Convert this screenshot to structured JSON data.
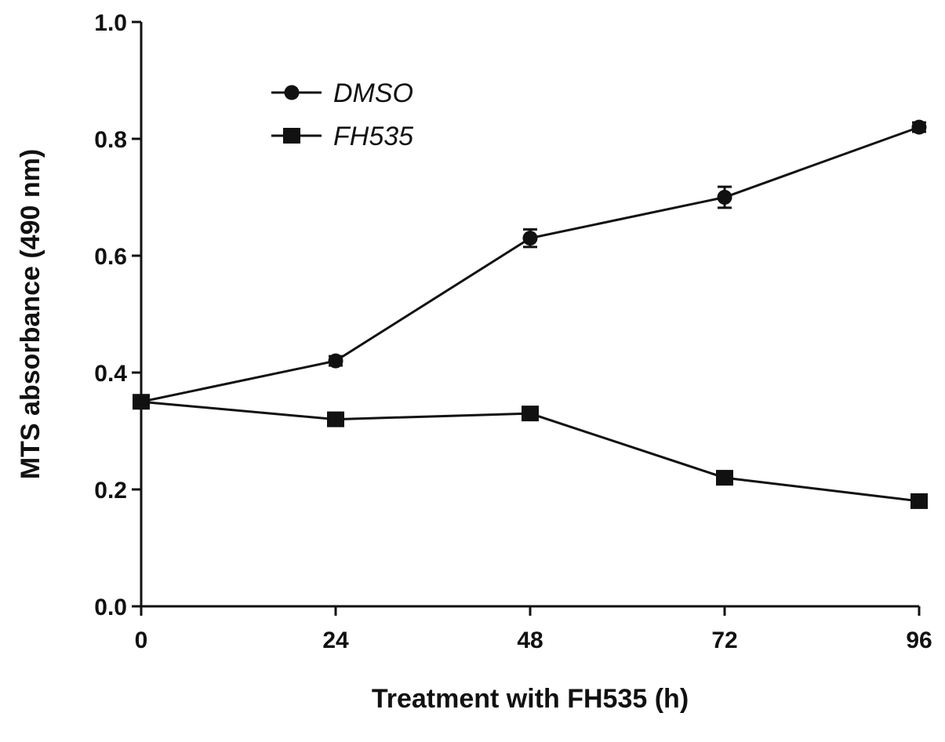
{
  "chart_data": {
    "type": "line",
    "title": "",
    "xlabel": "Treatment with FH535 (h)",
    "ylabel": "MTS absorbance (490 nm)",
    "x": [
      0,
      24,
      48,
      72,
      96
    ],
    "xlim": [
      0,
      96
    ],
    "ylim": [
      0.0,
      1.0
    ],
    "x_ticks": [
      "0",
      "24",
      "48",
      "72",
      "96"
    ],
    "y_ticks": [
      "0.0",
      "0.2",
      "0.4",
      "0.6",
      "0.8",
      "1.0"
    ],
    "grid": false,
    "legend_position": "top-left",
    "series": [
      {
        "name": "DMSO",
        "marker": "circle",
        "color": "#111111",
        "values": [
          0.35,
          0.42,
          0.63,
          0.7,
          0.82
        ],
        "errors": [
          0.005,
          0.008,
          0.015,
          0.018,
          0.008
        ]
      },
      {
        "name": "FH535",
        "marker": "square",
        "color": "#111111",
        "values": [
          0.35,
          0.32,
          0.33,
          0.22,
          0.18
        ],
        "errors": [
          0.005,
          0.006,
          0.006,
          0.006,
          0.006
        ]
      }
    ]
  }
}
